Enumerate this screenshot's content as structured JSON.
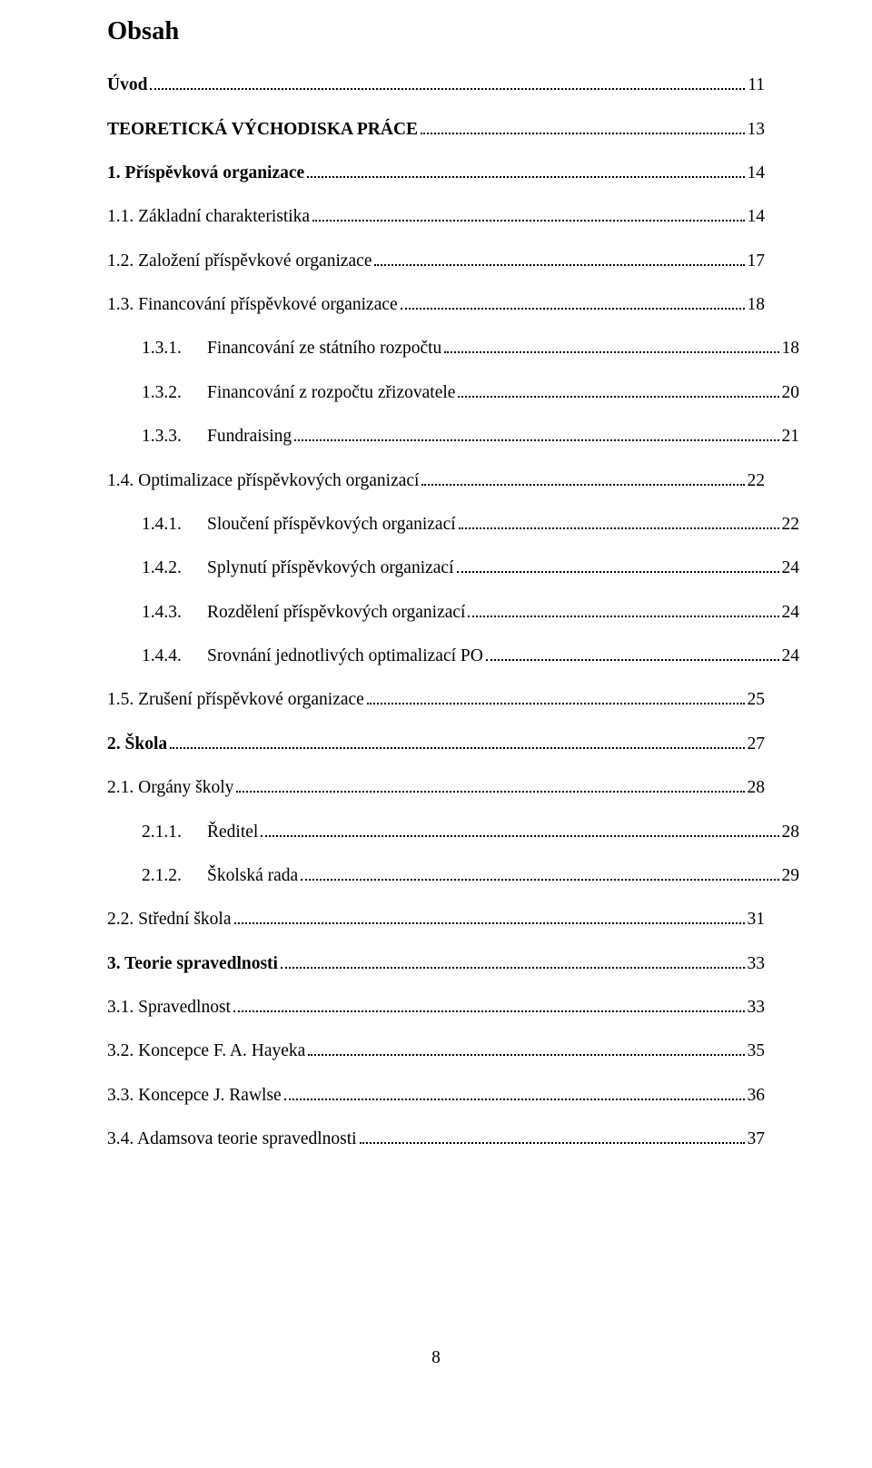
{
  "heading": "Obsah",
  "footer_page_number": "8",
  "toc": [
    {
      "level": 0,
      "bold": true,
      "label": "Úvod",
      "page": "11"
    },
    {
      "level": 0,
      "bold": true,
      "label": "TEORETICKÁ VÝCHODISKA PRÁCE",
      "page": "13"
    },
    {
      "level": 0,
      "bold": true,
      "label": "1. Příspěvková organizace",
      "page": "14"
    },
    {
      "level": 1,
      "bold": false,
      "label": "1.1. Základní charakteristika",
      "page": "14"
    },
    {
      "level": 1,
      "bold": false,
      "label": "1.2. Založení příspěvkové organizace",
      "page": "17"
    },
    {
      "level": 1,
      "bold": false,
      "label": "1.3. Financování příspěvkové organizace",
      "page": "18"
    },
    {
      "level": 2,
      "bold": false,
      "num": "1.3.1.",
      "text": "Financování ze státního rozpočtu",
      "page": "18"
    },
    {
      "level": 2,
      "bold": false,
      "num": "1.3.2.",
      "text": "Financování z rozpočtu zřizovatele",
      "page": "20"
    },
    {
      "level": 2,
      "bold": false,
      "num": "1.3.3.",
      "text": "Fundraising",
      "page": "21"
    },
    {
      "level": 1,
      "bold": false,
      "label": "1.4. Optimalizace příspěvkových organizací",
      "page": "22"
    },
    {
      "level": 2,
      "bold": false,
      "num": "1.4.1.",
      "text": "Sloučení příspěvkových organizací",
      "page": "22"
    },
    {
      "level": 2,
      "bold": false,
      "num": "1.4.2.",
      "text": "Splynutí příspěvkových organizací",
      "page": "24"
    },
    {
      "level": 2,
      "bold": false,
      "num": "1.4.3.",
      "text": "Rozdělení příspěvkových organizací",
      "page": "24"
    },
    {
      "level": 2,
      "bold": false,
      "num": "1.4.4.",
      "text": "Srovnání jednotlivých optimalizací PO",
      "page": "24"
    },
    {
      "level": 1,
      "bold": false,
      "label": "1.5. Zrušení příspěvkové organizace",
      "page": "25"
    },
    {
      "level": 0,
      "bold": true,
      "label": "2. Škola",
      "page": "27"
    },
    {
      "level": 1,
      "bold": false,
      "label": "2.1. Orgány školy",
      "page": "28"
    },
    {
      "level": 2,
      "bold": false,
      "num": "2.1.1.",
      "text": "Ředitel",
      "page": "28"
    },
    {
      "level": 2,
      "bold": false,
      "num": "2.1.2.",
      "text": "Školská rada",
      "page": "29"
    },
    {
      "level": 1,
      "bold": false,
      "label": "2.2. Střední škola",
      "page": "31"
    },
    {
      "level": 0,
      "bold": true,
      "label": "3. Teorie spravedlnosti",
      "page": "33"
    },
    {
      "level": 1,
      "bold": false,
      "label": "3.1. Spravedlnost",
      "page": "33"
    },
    {
      "level": 1,
      "bold": false,
      "label": "3.2. Koncepce F. A. Hayeka",
      "page": "35"
    },
    {
      "level": 1,
      "bold": false,
      "label": "3.3. Koncepce J. Rawlse",
      "page": "36"
    },
    {
      "level": 1,
      "bold": false,
      "label": "3.4. Adamsova teorie spravedlnosti",
      "page": "37"
    }
  ]
}
